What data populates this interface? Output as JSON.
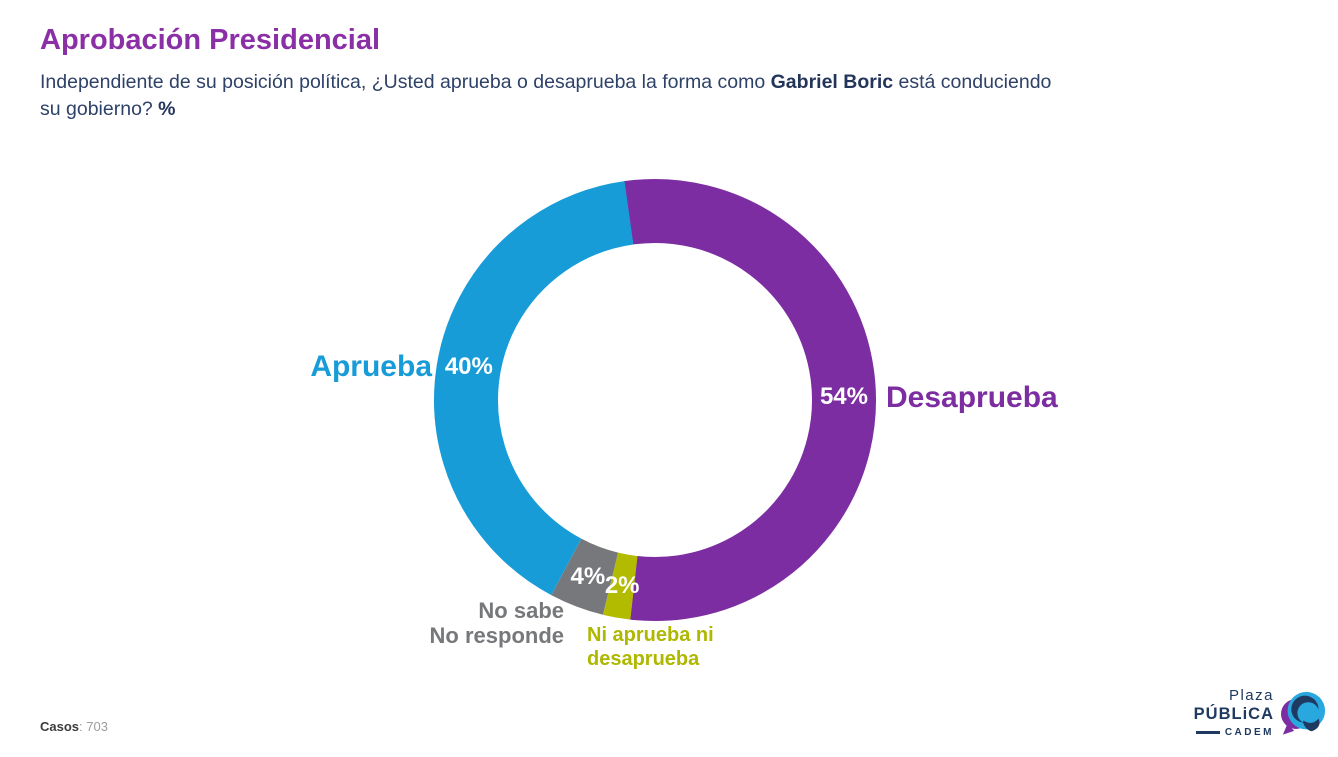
{
  "page": {
    "background": "#FFFFFF"
  },
  "header": {
    "title": "Aprobación Presidencial",
    "subtitle": {
      "line1_part1": "Independiente de su posición política, ¿Usted aprueba o desaprueba la forma como ",
      "line1_bold": "Gabriel Boric",
      "line1_part2": " está conduciendo",
      "line2_part1": "su gobierno? ",
      "line2_bold": "%"
    }
  },
  "chart_data": {
    "type": "donut",
    "title": "Aprobación Presidencial",
    "unit": "%",
    "start_angle_deg": -8,
    "segments": [
      {
        "label": "Desaprueba",
        "value": 54,
        "value_label": "54%",
        "color": "#7C2DA2"
      },
      {
        "label": "Ni aprueba ni desaprueba",
        "value": 2,
        "value_label": "2%",
        "color": "#B2BB00"
      },
      {
        "label": "No sabe No responde",
        "value": 4,
        "value_label": "4%",
        "color": "#77787B"
      },
      {
        "label": "Aprueba",
        "value": 40,
        "value_label": "40%",
        "color": "#189CD8"
      }
    ]
  },
  "callouts": {
    "aprueba": "Aprueba",
    "desaprueba": "Desaprueba",
    "no_sabe_line1": "No sabe",
    "no_sabe_line2": "No responde",
    "ni_aprueba_line1": "Ni aprueba ni",
    "ni_aprueba_line2": "desaprueba"
  },
  "footer": {
    "casos_label": "Casos",
    "casos_separator": ": ",
    "casos_value": "703",
    "logo": {
      "line1": "Plaza",
      "line2": "PÚBLiCA",
      "line3": "CADEM"
    },
    "logo_colors": {
      "navy": "#1F3A60",
      "blue": "#29A8E0",
      "purple": "#7C2DA2"
    }
  }
}
